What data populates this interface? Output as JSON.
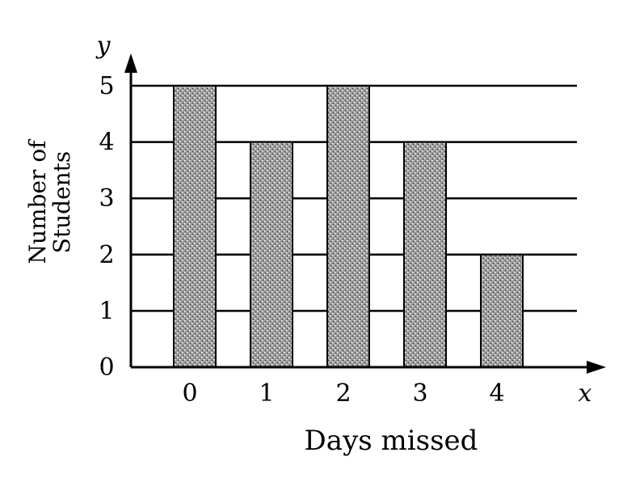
{
  "chart_data": {
    "type": "bar",
    "categories": [
      "0",
      "1",
      "2",
      "3",
      "4"
    ],
    "values": [
      5,
      4,
      5,
      4,
      2
    ],
    "title": "",
    "xlabel": "Days missed",
    "ylabel_lines": [
      "Number of",
      "Students"
    ],
    "x_axis_letter": "x",
    "y_axis_letter": "y",
    "y_ticks": [
      "0",
      "1",
      "2",
      "3",
      "4",
      "5"
    ],
    "ylim": [
      0,
      5
    ],
    "grid": true,
    "bar_fill": "#8a8a8a",
    "line_color": "#000000"
  }
}
